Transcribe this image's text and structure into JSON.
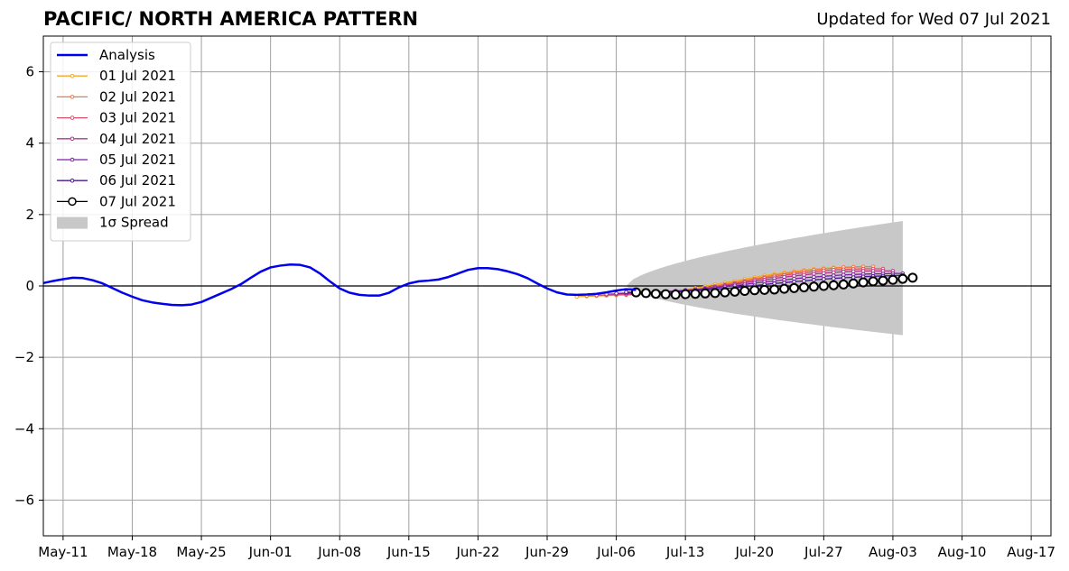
{
  "chart_data": {
    "type": "line",
    "title": "PACIFIC/ NORTH AMERICA PATTERN",
    "subtitle": "Updated for Wed 07 Jul 2021",
    "x_axis": {
      "type": "date",
      "min": "2021-05-09",
      "max": "2021-08-19",
      "ticks": [
        {
          "date": "2021-05-11",
          "label": "May-11"
        },
        {
          "date": "2021-05-18",
          "label": "May-18"
        },
        {
          "date": "2021-05-25",
          "label": "May-25"
        },
        {
          "date": "2021-06-01",
          "label": "Jun-01"
        },
        {
          "date": "2021-06-08",
          "label": "Jun-08"
        },
        {
          "date": "2021-06-15",
          "label": "Jun-15"
        },
        {
          "date": "2021-06-22",
          "label": "Jun-22"
        },
        {
          "date": "2021-06-29",
          "label": "Jun-29"
        },
        {
          "date": "2021-07-06",
          "label": "Jul-06"
        },
        {
          "date": "2021-07-13",
          "label": "Jul-13"
        },
        {
          "date": "2021-07-20",
          "label": "Jul-20"
        },
        {
          "date": "2021-07-27",
          "label": "Jul-27"
        },
        {
          "date": "2021-08-03",
          "label": "Aug-03"
        },
        {
          "date": "2021-08-10",
          "label": "Aug-10"
        },
        {
          "date": "2021-08-17",
          "label": "Aug-17"
        }
      ]
    },
    "y_axis": {
      "min": -7,
      "max": 7,
      "ticks": [
        {
          "value": 6,
          "label": "6"
        },
        {
          "value": 4,
          "label": "4"
        },
        {
          "value": 2,
          "label": "2"
        },
        {
          "value": 0,
          "label": "0"
        },
        {
          "value": -2,
          "label": "−2"
        },
        {
          "value": -4,
          "label": "−4"
        },
        {
          "value": -6,
          "label": "−6"
        }
      ]
    },
    "grid": true,
    "legend_position": "top-left",
    "analysis": {
      "name": "Analysis",
      "color": "#0000ee",
      "start": "2021-05-09",
      "values": [
        0.08,
        0.14,
        0.19,
        0.23,
        0.22,
        0.16,
        0.07,
        -0.06,
        -0.19,
        -0.3,
        -0.4,
        -0.46,
        -0.5,
        -0.53,
        -0.54,
        -0.52,
        -0.45,
        -0.33,
        -0.21,
        -0.09,
        0.05,
        0.23,
        0.4,
        0.52,
        0.57,
        0.6,
        0.59,
        0.52,
        0.35,
        0.13,
        -0.07,
        -0.19,
        -0.25,
        -0.27,
        -0.27,
        -0.19,
        -0.04,
        0.07,
        0.13,
        0.15,
        0.18,
        0.25,
        0.35,
        0.45,
        0.5,
        0.5,
        0.47,
        0.41,
        0.33,
        0.22,
        0.07,
        -0.07,
        -0.18,
        -0.24,
        -0.25,
        -0.24,
        -0.22,
        -0.18,
        -0.13,
        -0.09,
        -0.11
      ]
    },
    "spread": {
      "name": "1σ Spread",
      "color": "#c8c8c8",
      "start": "2021-07-07",
      "end": "2021-08-04",
      "upper_end": 1.82,
      "lower_end": -1.38
    },
    "forecasts": [
      {
        "name": "01 Jul 2021",
        "color": "#f5a623",
        "start": "2021-07-02",
        "values": [
          -0.3,
          -0.29,
          -0.28,
          -0.27,
          -0.26,
          -0.25,
          -0.25,
          -0.23,
          -0.21,
          -0.18,
          -0.15,
          -0.11,
          -0.06,
          -0.01,
          0.04,
          0.09,
          0.14,
          0.19,
          0.24,
          0.29,
          0.33,
          0.37,
          0.41,
          0.44,
          0.47,
          0.49,
          0.51,
          0.52,
          0.53,
          0.54
        ]
      },
      {
        "name": "02 Jul 2021",
        "color": "#ef7a3c",
        "start": "2021-07-03",
        "values": [
          -0.27,
          -0.27,
          -0.26,
          -0.25,
          -0.25,
          -0.24,
          -0.23,
          -0.22,
          -0.2,
          -0.17,
          -0.14,
          -0.1,
          -0.05,
          0.0,
          0.05,
          0.1,
          0.15,
          0.2,
          0.25,
          0.3,
          0.34,
          0.38,
          0.42,
          0.45,
          0.48,
          0.5,
          0.52,
          0.53,
          0.54,
          0.54
        ]
      },
      {
        "name": "03 Jul 2021",
        "color": "#d9506b",
        "start": "2021-07-04",
        "values": [
          -0.26,
          -0.25,
          -0.24,
          -0.24,
          -0.23,
          -0.22,
          -0.21,
          -0.19,
          -0.17,
          -0.14,
          -0.11,
          -0.07,
          -0.03,
          0.02,
          0.07,
          0.12,
          0.17,
          0.22,
          0.26,
          0.3,
          0.34,
          0.37,
          0.4,
          0.43,
          0.45,
          0.46,
          0.47,
          0.48,
          0.48,
          0.48
        ]
      },
      {
        "name": "04 Jul 2021",
        "color": "#b0368c",
        "start": "2021-07-05",
        "values": [
          -0.23,
          -0.22,
          -0.21,
          -0.21,
          -0.2,
          -0.19,
          -0.17,
          -0.15,
          -0.13,
          -0.1,
          -0.07,
          -0.03,
          0.01,
          0.05,
          0.09,
          0.13,
          0.17,
          0.21,
          0.25,
          0.28,
          0.31,
          0.34,
          0.36,
          0.38,
          0.4,
          0.41,
          0.42,
          0.42,
          0.42,
          0.42
        ]
      },
      {
        "name": "05 Jul 2021",
        "color": "#7e1ea8",
        "start": "2021-07-06",
        "values": [
          -0.21,
          -0.2,
          -0.19,
          -0.18,
          -0.17,
          -0.16,
          -0.14,
          -0.12,
          -0.1,
          -0.08,
          -0.05,
          -0.02,
          0.01,
          0.04,
          0.08,
          0.11,
          0.14,
          0.17,
          0.2,
          0.23,
          0.25,
          0.27,
          0.29,
          0.31,
          0.32,
          0.33,
          0.34,
          0.34,
          0.35,
          0.35
        ]
      },
      {
        "name": "06 Jul 2021",
        "color": "#4a148c",
        "start": "2021-07-07",
        "values": [
          -0.17,
          -0.18,
          -0.18,
          -0.18,
          -0.17,
          -0.16,
          -0.15,
          -0.13,
          -0.11,
          -0.09,
          -0.07,
          -0.05,
          -0.02,
          0.01,
          0.04,
          0.07,
          0.09,
          0.12,
          0.14,
          0.17,
          0.19,
          0.21,
          0.23,
          0.24,
          0.26,
          0.27,
          0.28,
          0.29,
          0.3
        ]
      },
      {
        "name": "07 Jul 2021",
        "color": "#000000",
        "start": "2021-07-08",
        "values": [
          -0.18,
          -0.2,
          -0.22,
          -0.23,
          -0.24,
          -0.23,
          -0.22,
          -0.21,
          -0.2,
          -0.18,
          -0.16,
          -0.14,
          -0.12,
          -0.11,
          -0.1,
          -0.08,
          -0.06,
          -0.04,
          -0.02,
          0.0,
          0.02,
          0.04,
          0.07,
          0.1,
          0.13,
          0.15,
          0.17,
          0.2,
          0.23
        ]
      }
    ]
  }
}
